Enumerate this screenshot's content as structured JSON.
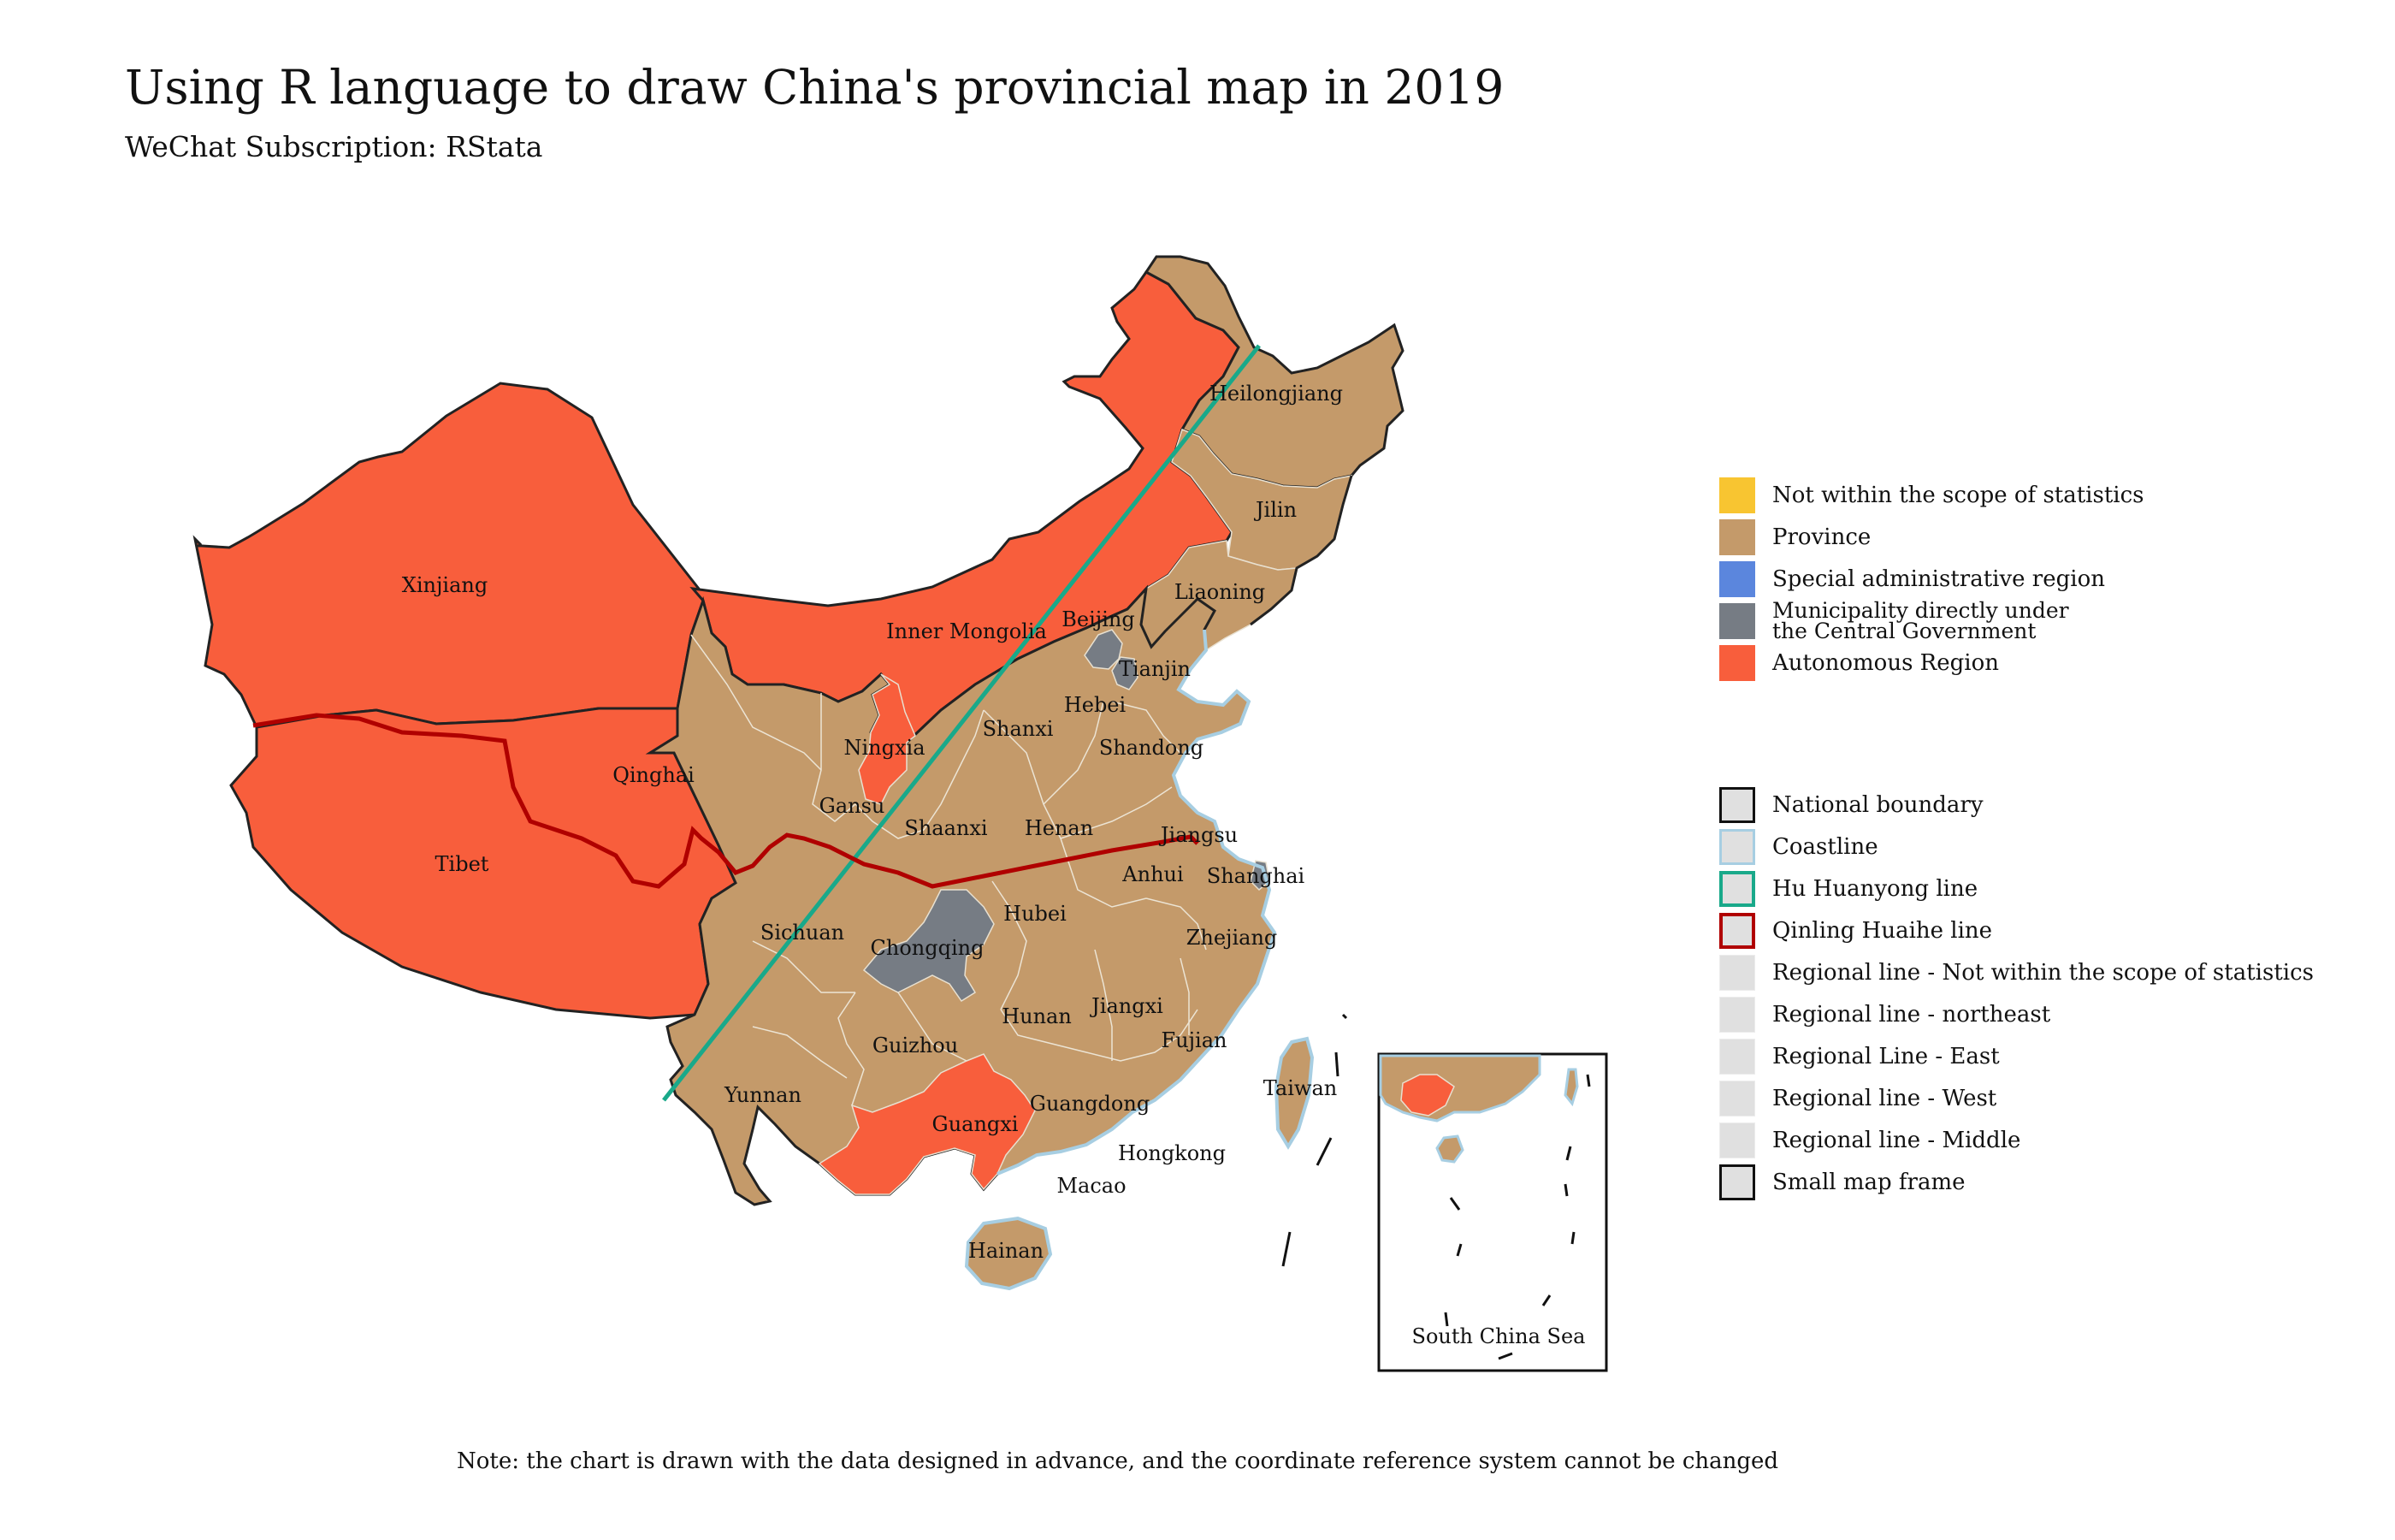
{
  "title": "Using R language to draw China's provincial map in 2019",
  "subtitle": "WeChat Subscription: RStata",
  "note": "Note: the chart is drawn with the data designed in advance, and the coordinate reference system cannot be changed",
  "colors": {
    "not_stat": "#F8C531",
    "province": "#C49A6A",
    "sar": "#5B86DD",
    "municipality": "#767C84",
    "autonomous": "#F85E3C",
    "coast": "#A7CEE2",
    "hu_line": "#19A98A",
    "qinling_line": "#B00000",
    "national": "#222222"
  },
  "legend_fill": [
    {
      "label": "Not within the scope of statistics",
      "color": "#F8C531"
    },
    {
      "label": "Province",
      "color": "#C49A6A"
    },
    {
      "label": "Special administrative region",
      "color": "#5B86DD"
    },
    {
      "label": "Municipality directly under the Central Government",
      "line1": "Municipality directly under",
      "line2": "the Central Government",
      "color": "#767C84"
    },
    {
      "label": "Autonomous Region",
      "color": "#F85E3C"
    }
  ],
  "legend_line": [
    {
      "label": "National boundary",
      "border": "#111111"
    },
    {
      "label": "Coastline",
      "border": "#A7CEE2"
    },
    {
      "label": "Hu Huanyong line",
      "border": "#19A98A"
    },
    {
      "label": "Qinling Huaihe line",
      "border": "#B00000"
    },
    {
      "label": "Regional line - Not within the scope of statistics",
      "border": "#E0E0E0"
    },
    {
      "label": "Regional line - northeast",
      "border": "#E0E0E0"
    },
    {
      "label": "Regional Line - East",
      "border": "#E0E0E0"
    },
    {
      "label": "Regional line - West",
      "border": "#E0E0E0"
    },
    {
      "label": "Regional line - Middle",
      "border": "#E0E0E0"
    },
    {
      "label": "Small map frame",
      "border": "#111111"
    }
  ],
  "provinces": {
    "heilongjiang": "Heilongjiang",
    "jilin": "Jilin",
    "liaoning": "Liaoning",
    "xinjiang": "Xinjiang",
    "inner_mongolia": "Inner Mongolia",
    "beijing": "Beijing",
    "tianjin": "Tianjin",
    "hebei": "Hebei",
    "shanxi": "Shanxi",
    "shandong": "Shandong",
    "ningxia": "Ningxia",
    "qinghai": "Qinghai",
    "gansu": "Gansu",
    "shaanxi": "Shaanxi",
    "henan": "Henan",
    "jiangsu": "Jiangsu",
    "tibet": "Tibet",
    "anhui": "Anhui",
    "shanghai": "Shanghai",
    "sichuan": "Sichuan",
    "chongqing": "Chongqing",
    "hubei": "Hubei",
    "zhejiang": "Zhejiang",
    "hunan": "Hunan",
    "jiangxi": "Jiangxi",
    "guizhou": "Guizhou",
    "fujian": "Fujian",
    "taiwan": "Taiwan",
    "yunnan": "Yunnan",
    "guangdong": "Guangdong",
    "guangxi": "Guangxi",
    "hongkong": "Hongkong",
    "macao": "Macao",
    "hainan": "Hainan"
  },
  "inset_label": "South China Sea"
}
